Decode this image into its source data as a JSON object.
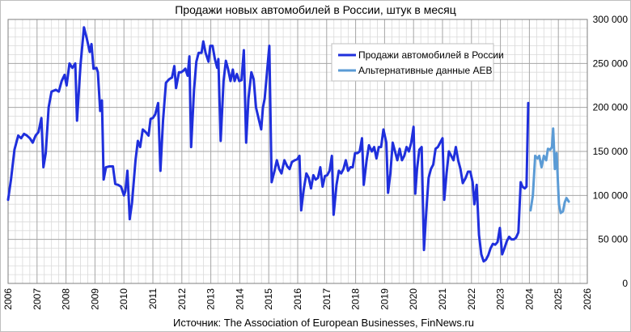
{
  "chart_data": {
    "type": "line",
    "title": "Продажи новых автомобилей в России, штук в месяц",
    "source": "Источник: The Association of European Businesses, FinNews.ru",
    "xlim": [
      2006,
      2026
    ],
    "ylim": [
      0,
      300000
    ],
    "x_ticks": [
      2006,
      2007,
      2008,
      2009,
      2010,
      2011,
      2012,
      2013,
      2014,
      2015,
      2016,
      2017,
      2018,
      2019,
      2020,
      2021,
      2022,
      2023,
      2024,
      2025,
      2026
    ],
    "y_ticks": [
      0,
      50000,
      100000,
      150000,
      200000,
      250000,
      300000
    ],
    "y_tick_labels": [
      "0",
      "50 000",
      "100 000",
      "150 000",
      "200 000",
      "250 000",
      "300 000"
    ],
    "grid": true,
    "y_axis_side": "right",
    "legend_position": "top-right",
    "series": [
      {
        "name": "Продажи автомобилей в России",
        "color": "#1f2fdc",
        "points": [
          [
            2006.0,
            95000
          ],
          [
            2006.1,
            118000
          ],
          [
            2006.22,
            152000
          ],
          [
            2006.35,
            168000
          ],
          [
            2006.45,
            165000
          ],
          [
            2006.55,
            170000
          ],
          [
            2006.65,
            168000
          ],
          [
            2006.75,
            165000
          ],
          [
            2006.85,
            160000
          ],
          [
            2006.95,
            168000
          ],
          [
            2007.05,
            172000
          ],
          [
            2007.15,
            188000
          ],
          [
            2007.22,
            132000
          ],
          [
            2007.3,
            148000
          ],
          [
            2007.4,
            200000
          ],
          [
            2007.5,
            218000
          ],
          [
            2007.65,
            220000
          ],
          [
            2007.75,
            218000
          ],
          [
            2007.85,
            230000
          ],
          [
            2007.95,
            237000
          ],
          [
            2008.02,
            225000
          ],
          [
            2008.12,
            250000
          ],
          [
            2008.22,
            245000
          ],
          [
            2008.32,
            250000
          ],
          [
            2008.38,
            185000
          ],
          [
            2008.5,
            248000
          ],
          [
            2008.62,
            291000
          ],
          [
            2008.72,
            278000
          ],
          [
            2008.82,
            263000
          ],
          [
            2008.88,
            272000
          ],
          [
            2008.95,
            244000
          ],
          [
            2009.05,
            245000
          ],
          [
            2009.1,
            240000
          ],
          [
            2009.18,
            196000
          ],
          [
            2009.24,
            208000
          ],
          [
            2009.3,
            118000
          ],
          [
            2009.38,
            132000
          ],
          [
            2009.5,
            133000
          ],
          [
            2009.62,
            133000
          ],
          [
            2009.7,
            113000
          ],
          [
            2009.8,
            112000
          ],
          [
            2009.9,
            110000
          ],
          [
            2010.0,
            100000
          ],
          [
            2010.05,
            105000
          ],
          [
            2010.12,
            128000
          ],
          [
            2010.2,
            73000
          ],
          [
            2010.28,
            92000
          ],
          [
            2010.4,
            140000
          ],
          [
            2010.48,
            162000
          ],
          [
            2010.56,
            155000
          ],
          [
            2010.65,
            175000
          ],
          [
            2010.75,
            172000
          ],
          [
            2010.85,
            168000
          ],
          [
            2010.92,
            187000
          ],
          [
            2011.0,
            188000
          ],
          [
            2011.08,
            192000
          ],
          [
            2011.18,
            205000
          ],
          [
            2011.26,
            128000
          ],
          [
            2011.35,
            185000
          ],
          [
            2011.45,
            228000
          ],
          [
            2011.56,
            232000
          ],
          [
            2011.66,
            234000
          ],
          [
            2011.74,
            247000
          ],
          [
            2011.8,
            222000
          ],
          [
            2011.9,
            240000
          ],
          [
            2011.98,
            240000
          ],
          [
            2012.06,
            242000
          ],
          [
            2012.12,
            244000
          ],
          [
            2012.2,
            236000
          ],
          [
            2012.26,
            258000
          ],
          [
            2012.32,
            155000
          ],
          [
            2012.42,
            220000
          ],
          [
            2012.5,
            252000
          ],
          [
            2012.58,
            262000
          ],
          [
            2012.68,
            262000
          ],
          [
            2012.74,
            275000
          ],
          [
            2012.82,
            262000
          ],
          [
            2012.92,
            252000
          ],
          [
            2012.98,
            270000
          ],
          [
            2013.06,
            270000
          ],
          [
            2013.14,
            255000
          ],
          [
            2013.22,
            245000
          ],
          [
            2013.26,
            255000
          ],
          [
            2013.34,
            162000
          ],
          [
            2013.44,
            230000
          ],
          [
            2013.52,
            253000
          ],
          [
            2013.6,
            243000
          ],
          [
            2013.68,
            230000
          ],
          [
            2013.76,
            243000
          ],
          [
            2013.82,
            230000
          ],
          [
            2013.9,
            238000
          ],
          [
            2013.98,
            230000
          ],
          [
            2014.06,
            231000
          ],
          [
            2014.14,
            265000
          ],
          [
            2014.22,
            160000
          ],
          [
            2014.3,
            210000
          ],
          [
            2014.4,
            240000
          ],
          [
            2014.48,
            232000
          ],
          [
            2014.56,
            200000
          ],
          [
            2014.66,
            186000
          ],
          [
            2014.74,
            175000
          ],
          [
            2014.8,
            200000
          ],
          [
            2014.86,
            210000
          ],
          [
            2014.94,
            240000
          ],
          [
            2015.02,
            270000
          ],
          [
            2015.1,
            115000
          ],
          [
            2015.2,
            128000
          ],
          [
            2015.28,
            140000
          ],
          [
            2015.36,
            130000
          ],
          [
            2015.44,
            125000
          ],
          [
            2015.54,
            140000
          ],
          [
            2015.64,
            133000
          ],
          [
            2015.72,
            130000
          ],
          [
            2015.8,
            138000
          ],
          [
            2015.9,
            140000
          ],
          [
            2015.98,
            141000
          ],
          [
            2016.06,
            145000
          ],
          [
            2016.12,
            83000
          ],
          [
            2016.2,
            105000
          ],
          [
            2016.3,
            125000
          ],
          [
            2016.38,
            120000
          ],
          [
            2016.46,
            108000
          ],
          [
            2016.54,
            123000
          ],
          [
            2016.62,
            118000
          ],
          [
            2016.7,
            120000
          ],
          [
            2016.78,
            132000
          ],
          [
            2016.86,
            110000
          ],
          [
            2016.94,
            122000
          ],
          [
            2017.02,
            123000
          ],
          [
            2017.1,
            128000
          ],
          [
            2017.18,
            145000
          ],
          [
            2017.24,
            78000
          ],
          [
            2017.34,
            112000
          ],
          [
            2017.42,
            128000
          ],
          [
            2017.5,
            125000
          ],
          [
            2017.58,
            130000
          ],
          [
            2017.66,
            140000
          ],
          [
            2017.74,
            128000
          ],
          [
            2017.82,
            132000
          ],
          [
            2017.9,
            132000
          ],
          [
            2017.98,
            148000
          ],
          [
            2018.06,
            148000
          ],
          [
            2018.14,
            150000
          ],
          [
            2018.22,
            165000
          ],
          [
            2018.28,
            112000
          ],
          [
            2018.38,
            140000
          ],
          [
            2018.46,
            157000
          ],
          [
            2018.56,
            150000
          ],
          [
            2018.64,
            155000
          ],
          [
            2018.72,
            142000
          ],
          [
            2018.8,
            155000
          ],
          [
            2018.88,
            155000
          ],
          [
            2018.96,
            175000
          ],
          [
            2019.06,
            160000
          ],
          [
            2019.12,
            103000
          ],
          [
            2019.2,
            125000
          ],
          [
            2019.28,
            160000
          ],
          [
            2019.36,
            150000
          ],
          [
            2019.44,
            140000
          ],
          [
            2019.52,
            153000
          ],
          [
            2019.6,
            140000
          ],
          [
            2019.68,
            145000
          ],
          [
            2019.76,
            155000
          ],
          [
            2019.84,
            150000
          ],
          [
            2019.92,
            160000
          ],
          [
            2020.0,
            178000
          ],
          [
            2020.06,
            102000
          ],
          [
            2020.12,
            130000
          ],
          [
            2020.2,
            152000
          ],
          [
            2020.28,
            155000
          ],
          [
            2020.36,
            38000
          ],
          [
            2020.44,
            82000
          ],
          [
            2020.52,
            120000
          ],
          [
            2020.6,
            130000
          ],
          [
            2020.68,
            135000
          ],
          [
            2020.76,
            153000
          ],
          [
            2020.84,
            155000
          ],
          [
            2020.92,
            160000
          ],
          [
            2021.0,
            165000
          ],
          [
            2021.06,
            95000
          ],
          [
            2021.14,
            125000
          ],
          [
            2021.22,
            150000
          ],
          [
            2021.3,
            145000
          ],
          [
            2021.38,
            140000
          ],
          [
            2021.46,
            155000
          ],
          [
            2021.54,
            140000
          ],
          [
            2021.62,
            130000
          ],
          [
            2021.7,
            114000
          ],
          [
            2021.8,
            120000
          ],
          [
            2021.88,
            127000
          ],
          [
            2021.96,
            127000
          ],
          [
            2022.04,
            115000
          ],
          [
            2022.1,
            90000
          ],
          [
            2022.18,
            112000
          ],
          [
            2022.26,
            55000
          ],
          [
            2022.34,
            33000
          ],
          [
            2022.42,
            25000
          ],
          [
            2022.5,
            27000
          ],
          [
            2022.58,
            32000
          ],
          [
            2022.66,
            40000
          ],
          [
            2022.74,
            45000
          ],
          [
            2022.82,
            44000
          ],
          [
            2022.9,
            47000
          ],
          [
            2022.98,
            63000
          ],
          [
            2023.06,
            33000
          ],
          [
            2023.14,
            40000
          ],
          [
            2023.22,
            48000
          ],
          [
            2023.3,
            53000
          ],
          [
            2023.38,
            50000
          ],
          [
            2023.46,
            50000
          ],
          [
            2023.54,
            52000
          ],
          [
            2023.62,
            58000
          ],
          [
            2023.7,
            115000
          ],
          [
            2023.76,
            110000
          ],
          [
            2023.84,
            108000
          ],
          [
            2023.9,
            110000
          ],
          [
            2023.96,
            205000
          ]
        ]
      },
      {
        "name": "Альтернативные данные AEB",
        "color": "#5b9bd5",
        "points": [
          [
            2024.04,
            83000
          ],
          [
            2024.12,
            100000
          ],
          [
            2024.2,
            145000
          ],
          [
            2024.28,
            142000
          ],
          [
            2024.34,
            145000
          ],
          [
            2024.42,
            132000
          ],
          [
            2024.5,
            145000
          ],
          [
            2024.58,
            140000
          ],
          [
            2024.64,
            153000
          ],
          [
            2024.72,
            152000
          ],
          [
            2024.78,
            155000
          ],
          [
            2024.82,
            176000
          ],
          [
            2024.88,
            130000
          ],
          [
            2024.94,
            148000
          ],
          [
            2025.02,
            90000
          ],
          [
            2025.08,
            80000
          ],
          [
            2025.16,
            82000
          ],
          [
            2025.22,
            92000
          ],
          [
            2025.28,
            97000
          ],
          [
            2025.36,
            93000
          ]
        ]
      }
    ]
  }
}
